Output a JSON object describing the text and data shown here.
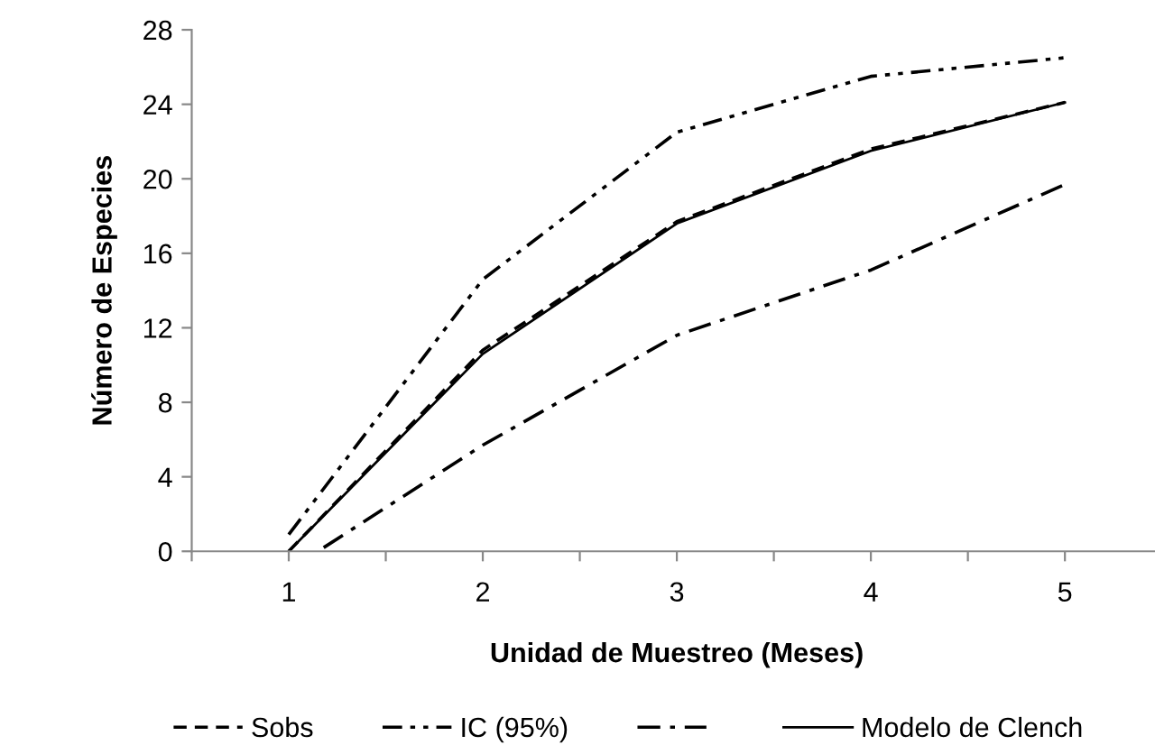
{
  "chart_data": {
    "type": "line",
    "xlabel": "Unidad de Muestreo (Meses)",
    "ylabel": "Número de Especies",
    "xlim": [
      0.5,
      5.5
    ],
    "xticks": [
      {
        "value": 0.5,
        "label": null
      },
      1,
      {
        "value": 1.5,
        "label": null
      },
      2,
      {
        "value": 2.5,
        "label": null
      },
      3,
      {
        "value": 3.5,
        "label": null
      },
      4,
      {
        "value": 4.5,
        "label": null
      },
      5
    ],
    "ylim": [
      0,
      28
    ],
    "yticks": [
      0,
      4,
      8,
      12,
      16,
      20,
      24,
      28
    ],
    "grid": false,
    "legend": "bottom",
    "marker": "none",
    "series": [
      {
        "name": "Sobs",
        "color": "#000000",
        "line_style": "dashed",
        "x": [
          1,
          2,
          3,
          4,
          5
        ],
        "values": [
          0,
          10.8,
          17.7,
          21.6,
          24.1
        ]
      },
      {
        "name": "IC (95%)",
        "color": "#000000",
        "line_style": "dashdotdot",
        "x": [
          1,
          2,
          3,
          4,
          5
        ],
        "values": [
          0.9,
          14.6,
          22.5,
          25.5,
          26.5
        ]
      },
      {
        "color": "#000000",
        "line_style": "dashdot",
        "x": [
          1.18,
          2,
          3,
          4,
          5
        ],
        "values": [
          0.2,
          5.7,
          11.6,
          15.1,
          19.7
        ]
      },
      {
        "name": "Modelo de Clench",
        "color": "#000000",
        "line_style": "solid",
        "x": [
          1,
          2,
          3,
          4,
          5
        ],
        "values": [
          0,
          10.6,
          17.6,
          21.5,
          24.1
        ]
      }
    ]
  }
}
